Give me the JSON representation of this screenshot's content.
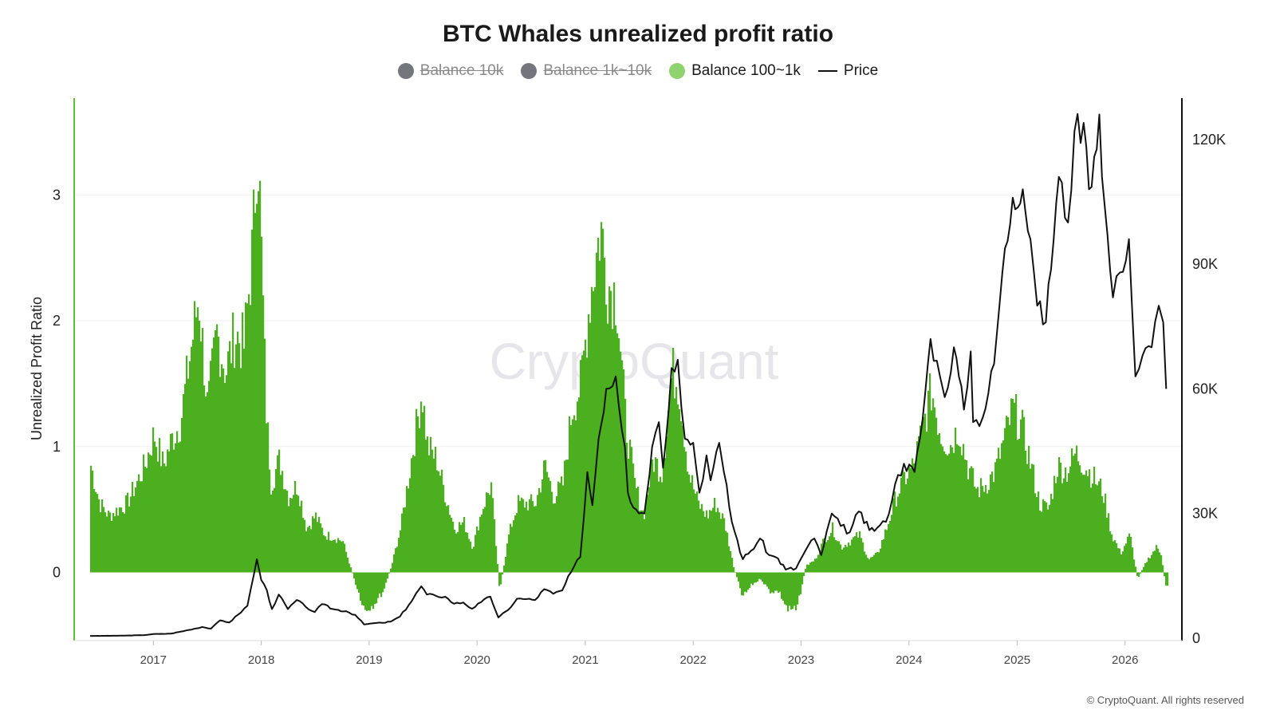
{
  "chart_data": {
    "type": "bar",
    "title": "BTC Whales unrealized profit ratio",
    "ylabel": "Unrealized Profit Ratio",
    "y_ticks": [
      "0",
      "1",
      "2",
      "3"
    ],
    "y_right_ticks": [
      "0",
      "30K",
      "60K",
      "90K",
      "120K"
    ],
    "x_ticks": [
      "2017",
      "2018",
      "2019",
      "2020",
      "2021",
      "2022",
      "2023",
      "2024",
      "2025",
      "2026"
    ],
    "ylim": [
      -0.55,
      3.6
    ],
    "ylim_right": [
      0,
      130000
    ],
    "grid": true,
    "legend_position": "top-center",
    "legend": [
      {
        "name": "Balance 10k",
        "color": "#75757d",
        "type": "dot",
        "hidden": true
      },
      {
        "name": "Balance 1k~10k",
        "color": "#75757d",
        "type": "dot",
        "hidden": true
      },
      {
        "name": "Balance 100~1k",
        "color": "#8fd36e",
        "type": "dot",
        "hidden": false
      },
      {
        "name": "Price",
        "color": "#111111",
        "type": "line",
        "hidden": false
      }
    ],
    "series": [
      {
        "name": "Balance 100~1k",
        "color": "#4caf1f",
        "axis": "left",
        "points": [
          [
            "2016-06-01",
            0.85
          ],
          [
            "2016-07-01",
            0.55
          ],
          [
            "2016-08-01",
            0.45
          ],
          [
            "2016-09-01",
            0.5
          ],
          [
            "2016-10-01",
            0.55
          ],
          [
            "2016-11-01",
            0.7
          ],
          [
            "2016-12-01",
            0.85
          ],
          [
            "2017-01-01",
            1.1
          ],
          [
            "2017-02-01",
            0.85
          ],
          [
            "2017-03-01",
            1.05
          ],
          [
            "2017-04-01",
            1.2
          ],
          [
            "2017-05-01",
            1.7
          ],
          [
            "2017-06-01",
            2.2
          ],
          [
            "2017-07-01",
            1.3
          ],
          [
            "2017-08-01",
            1.9
          ],
          [
            "2017-09-01",
            1.6
          ],
          [
            "2017-10-01",
            1.9
          ],
          [
            "2017-11-01",
            1.8
          ],
          [
            "2017-12-01",
            2.6
          ],
          [
            "2017-12-17",
            3.55
          ],
          [
            "2018-01-01",
            2.4
          ],
          [
            "2018-01-15",
            1.3
          ],
          [
            "2018-02-01",
            0.7
          ],
          [
            "2018-03-01",
            0.9
          ],
          [
            "2018-04-01",
            0.6
          ],
          [
            "2018-05-01",
            0.7
          ],
          [
            "2018-06-01",
            0.35
          ],
          [
            "2018-07-01",
            0.45
          ],
          [
            "2018-08-01",
            0.3
          ],
          [
            "2018-09-01",
            0.28
          ],
          [
            "2018-10-01",
            0.25
          ],
          [
            "2018-11-15",
            -0.1
          ],
          [
            "2018-12-15",
            -0.3
          ],
          [
            "2019-01-15",
            -0.25
          ],
          [
            "2019-02-15",
            -0.15
          ],
          [
            "2019-03-15",
            0.05
          ],
          [
            "2019-04-15",
            0.35
          ],
          [
            "2019-05-15",
            0.8
          ],
          [
            "2019-06-26",
            1.45
          ],
          [
            "2019-07-15",
            1.0
          ],
          [
            "2019-08-15",
            0.9
          ],
          [
            "2019-09-15",
            0.6
          ],
          [
            "2019-10-15",
            0.35
          ],
          [
            "2019-11-15",
            0.4
          ],
          [
            "2019-12-15",
            0.2
          ],
          [
            "2020-01-15",
            0.5
          ],
          [
            "2020-02-15",
            0.7
          ],
          [
            "2020-03-15",
            -0.15
          ],
          [
            "2020-04-15",
            0.3
          ],
          [
            "2020-05-15",
            0.55
          ],
          [
            "2020-06-15",
            0.55
          ],
          [
            "2020-07-15",
            0.55
          ],
          [
            "2020-08-15",
            0.85
          ],
          [
            "2020-09-15",
            0.6
          ],
          [
            "2020-10-15",
            0.7
          ],
          [
            "2020-11-15",
            1.3
          ],
          [
            "2020-12-15",
            1.5
          ],
          [
            "2021-01-15",
            2.2
          ],
          [
            "2021-02-20",
            2.75
          ],
          [
            "2021-03-15",
            2.3
          ],
          [
            "2021-04-15",
            2.2
          ],
          [
            "2021-05-15",
            1.2
          ],
          [
            "2021-06-15",
            0.7
          ],
          [
            "2021-07-15",
            0.45
          ],
          [
            "2021-08-15",
            0.9
          ],
          [
            "2021-09-15",
            0.8
          ],
          [
            "2021-10-20",
            1.6
          ],
          [
            "2021-11-10",
            1.5
          ],
          [
            "2021-12-15",
            0.8
          ],
          [
            "2022-01-15",
            0.55
          ],
          [
            "2022-02-15",
            0.45
          ],
          [
            "2022-03-15",
            0.55
          ],
          [
            "2022-04-15",
            0.4
          ],
          [
            "2022-05-15",
            0.05
          ],
          [
            "2022-06-15",
            -0.2
          ],
          [
            "2022-07-15",
            -0.1
          ],
          [
            "2022-08-15",
            -0.05
          ],
          [
            "2022-09-15",
            -0.15
          ],
          [
            "2022-10-15",
            -0.15
          ],
          [
            "2022-11-15",
            -0.3
          ],
          [
            "2022-12-15",
            -0.3
          ],
          [
            "2023-01-15",
            0.05
          ],
          [
            "2023-02-15",
            0.1
          ],
          [
            "2023-03-15",
            0.25
          ],
          [
            "2023-04-15",
            0.35
          ],
          [
            "2023-05-15",
            0.2
          ],
          [
            "2023-06-15",
            0.25
          ],
          [
            "2023-07-15",
            0.3
          ],
          [
            "2023-08-15",
            0.1
          ],
          [
            "2023-09-15",
            0.15
          ],
          [
            "2023-10-15",
            0.35
          ],
          [
            "2023-11-15",
            0.6
          ],
          [
            "2023-12-15",
            0.75
          ],
          [
            "2024-01-15",
            0.85
          ],
          [
            "2024-03-15",
            1.45
          ],
          [
            "2024-04-15",
            1.1
          ],
          [
            "2024-05-15",
            1.0
          ],
          [
            "2024-06-15",
            1.15
          ],
          [
            "2024-07-15",
            0.85
          ],
          [
            "2024-08-15",
            0.65
          ],
          [
            "2024-09-15",
            0.7
          ],
          [
            "2024-10-15",
            0.8
          ],
          [
            "2024-11-15",
            1.05
          ],
          [
            "2024-12-15",
            1.3
          ],
          [
            "2025-01-15",
            1.15
          ],
          [
            "2025-02-15",
            0.85
          ],
          [
            "2025-03-15",
            0.55
          ],
          [
            "2025-04-15",
            0.5
          ],
          [
            "2025-05-15",
            0.85
          ],
          [
            "2025-06-15",
            0.8
          ],
          [
            "2025-07-15",
            0.95
          ],
          [
            "2025-08-15",
            0.85
          ],
          [
            "2025-09-15",
            0.75
          ],
          [
            "2025-10-15",
            0.65
          ],
          [
            "2025-11-15",
            0.3
          ],
          [
            "2025-12-15",
            0.15
          ],
          [
            "2026-01-15",
            0.3
          ],
          [
            "2026-02-10",
            -0.05
          ],
          [
            "2026-03-15",
            0.1
          ],
          [
            "2026-04-15",
            0.2
          ],
          [
            "2026-05-01",
            0.15
          ],
          [
            "2026-05-15",
            -0.1
          ]
        ]
      },
      {
        "name": "Price",
        "color": "#111111",
        "axis": "right",
        "points": [
          [
            "2016-06-01",
            550
          ],
          [
            "2016-09-01",
            600
          ],
          [
            "2016-12-01",
            750
          ],
          [
            "2017-01-01",
            1000
          ],
          [
            "2017-03-01",
            1100
          ],
          [
            "2017-05-01",
            2000
          ],
          [
            "2017-06-15",
            2700
          ],
          [
            "2017-07-15",
            2300
          ],
          [
            "2017-08-15",
            4300
          ],
          [
            "2017-09-15",
            3800
          ],
          [
            "2017-10-15",
            5700
          ],
          [
            "2017-11-15",
            7800
          ],
          [
            "2017-12-17",
            19000
          ],
          [
            "2018-01-01",
            14000
          ],
          [
            "2018-01-20",
            11500
          ],
          [
            "2018-02-06",
            7000
          ],
          [
            "2018-03-01",
            10500
          ],
          [
            "2018-04-01",
            7000
          ],
          [
            "2018-05-01",
            9200
          ],
          [
            "2018-06-01",
            7500
          ],
          [
            "2018-07-01",
            6300
          ],
          [
            "2018-07-25",
            8200
          ],
          [
            "2018-09-01",
            7000
          ],
          [
            "2018-10-15",
            6500
          ],
          [
            "2018-11-15",
            5600
          ],
          [
            "2018-12-15",
            3300
          ],
          [
            "2019-01-15",
            3600
          ],
          [
            "2019-02-15",
            3700
          ],
          [
            "2019-03-15",
            4000
          ],
          [
            "2019-04-15",
            5200
          ],
          [
            "2019-05-15",
            8000
          ],
          [
            "2019-06-26",
            12500
          ],
          [
            "2019-07-15",
            10500
          ],
          [
            "2019-08-15",
            10200
          ],
          [
            "2019-09-15",
            10000
          ],
          [
            "2019-10-15",
            8300
          ],
          [
            "2019-11-15",
            8600
          ],
          [
            "2019-12-15",
            7100
          ],
          [
            "2020-01-15",
            8700
          ],
          [
            "2020-02-15",
            10000
          ],
          [
            "2020-03-13",
            5000
          ],
          [
            "2020-04-15",
            6800
          ],
          [
            "2020-05-15",
            9500
          ],
          [
            "2020-06-15",
            9400
          ],
          [
            "2020-07-15",
            9200
          ],
          [
            "2020-08-15",
            11800
          ],
          [
            "2020-09-15",
            10700
          ],
          [
            "2020-10-15",
            11500
          ],
          [
            "2020-11-15",
            16000
          ],
          [
            "2020-12-15",
            19500
          ],
          [
            "2021-01-08",
            40000
          ],
          [
            "2021-01-25",
            32000
          ],
          [
            "2021-02-15",
            48000
          ],
          [
            "2021-03-13",
            60000
          ],
          [
            "2021-04-14",
            63000
          ],
          [
            "2021-05-15",
            46000
          ],
          [
            "2021-05-25",
            35000
          ],
          [
            "2021-06-22",
            31000
          ],
          [
            "2021-07-20",
            30000
          ],
          [
            "2021-08-15",
            46000
          ],
          [
            "2021-09-07",
            52000
          ],
          [
            "2021-09-21",
            41000
          ],
          [
            "2021-10-20",
            65000
          ],
          [
            "2021-11-10",
            67000
          ],
          [
            "2021-12-04",
            48000
          ],
          [
            "2022-01-01",
            47000
          ],
          [
            "2022-01-22",
            35000
          ],
          [
            "2022-02-15",
            44000
          ],
          [
            "2022-03-01",
            38000
          ],
          [
            "2022-03-30",
            47000
          ],
          [
            "2022-04-15",
            40000
          ],
          [
            "2022-05-12",
            28000
          ],
          [
            "2022-06-18",
            19000
          ],
          [
            "2022-07-15",
            21000
          ],
          [
            "2022-08-15",
            24000
          ],
          [
            "2022-09-15",
            20000
          ],
          [
            "2022-10-15",
            19200
          ],
          [
            "2022-11-10",
            16500
          ],
          [
            "2022-12-15",
            16800
          ],
          [
            "2023-01-15",
            21000
          ],
          [
            "2023-02-15",
            24000
          ],
          [
            "2023-03-10",
            20000
          ],
          [
            "2023-04-15",
            30000
          ],
          [
            "2023-05-15",
            27000
          ],
          [
            "2023-06-15",
            25500
          ],
          [
            "2023-07-15",
            30500
          ],
          [
            "2023-08-20",
            26000
          ],
          [
            "2023-09-15",
            26500
          ],
          [
            "2023-10-15",
            28000
          ],
          [
            "2023-11-15",
            37000
          ],
          [
            "2023-12-15",
            42000
          ],
          [
            "2024-01-20",
            40000
          ],
          [
            "2024-02-15",
            52000
          ],
          [
            "2024-03-14",
            72000
          ],
          [
            "2024-04-15",
            63000
          ],
          [
            "2024-05-01",
            58000
          ],
          [
            "2024-06-01",
            70000
          ],
          [
            "2024-07-05",
            55000
          ],
          [
            "2024-07-28",
            69000
          ],
          [
            "2024-08-05",
            52000
          ],
          [
            "2024-09-06",
            53000
          ],
          [
            "2024-10-15",
            66000
          ],
          [
            "2024-11-12",
            88000
          ],
          [
            "2024-12-17",
            106000
          ],
          [
            "2025-01-20",
            108000
          ],
          [
            "2025-02-15",
            96000
          ],
          [
            "2025-03-10",
            80000
          ],
          [
            "2025-04-08",
            76000
          ],
          [
            "2025-05-22",
            111000
          ],
          [
            "2025-06-22",
            100000
          ],
          [
            "2025-07-14",
            122000
          ],
          [
            "2025-08-14",
            124000
          ],
          [
            "2025-09-01",
            108000
          ],
          [
            "2025-10-06",
            126000
          ],
          [
            "2025-10-15",
            111000
          ],
          [
            "2025-11-21",
            82000
          ],
          [
            "2025-12-15",
            88000
          ],
          [
            "2026-01-14",
            96000
          ],
          [
            "2026-02-05",
            63000
          ],
          [
            "2026-03-01",
            68000
          ],
          [
            "2026-04-01",
            70000
          ],
          [
            "2026-04-25",
            80000
          ],
          [
            "2026-05-10",
            76000
          ],
          [
            "2026-05-20",
            60000
          ]
        ]
      }
    ],
    "watermark": "CryptoQuant",
    "footer": "© CryptoQuant. All rights reserved"
  }
}
